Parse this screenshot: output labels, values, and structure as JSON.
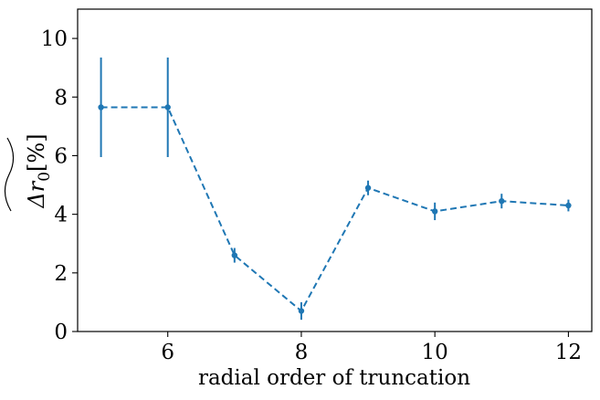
{
  "chart_data": {
    "type": "line",
    "title": "",
    "xlabel": "radial order of truncation",
    "ylabel": {
      "base": "Δr",
      "subscript": "0",
      "unit": "[%]",
      "accent": "tilde"
    },
    "xlim": [
      4.65,
      12.35
    ],
    "ylim": [
      0,
      11
    ],
    "xticks": [
      6,
      8,
      10,
      12
    ],
    "yticks": [
      0,
      2,
      4,
      6,
      8,
      10
    ],
    "grid": false,
    "legend": "none",
    "series": [
      {
        "color": "#1f77b4",
        "line_style": "dashed",
        "marker": "circle",
        "points": [
          {
            "x": 5,
            "y": 7.65,
            "err": 1.7
          },
          {
            "x": 6,
            "y": 7.65,
            "err": 1.7
          },
          {
            "x": 7,
            "y": 2.6,
            "err": 0.25
          },
          {
            "x": 8,
            "y": 0.7,
            "err": 0.3
          },
          {
            "x": 9,
            "y": 4.9,
            "err": 0.25
          },
          {
            "x": 10,
            "y": 4.1,
            "err": 0.3
          },
          {
            "x": 11,
            "y": 4.45,
            "err": 0.25
          },
          {
            "x": 12,
            "y": 4.3,
            "err": 0.2
          }
        ]
      }
    ]
  }
}
